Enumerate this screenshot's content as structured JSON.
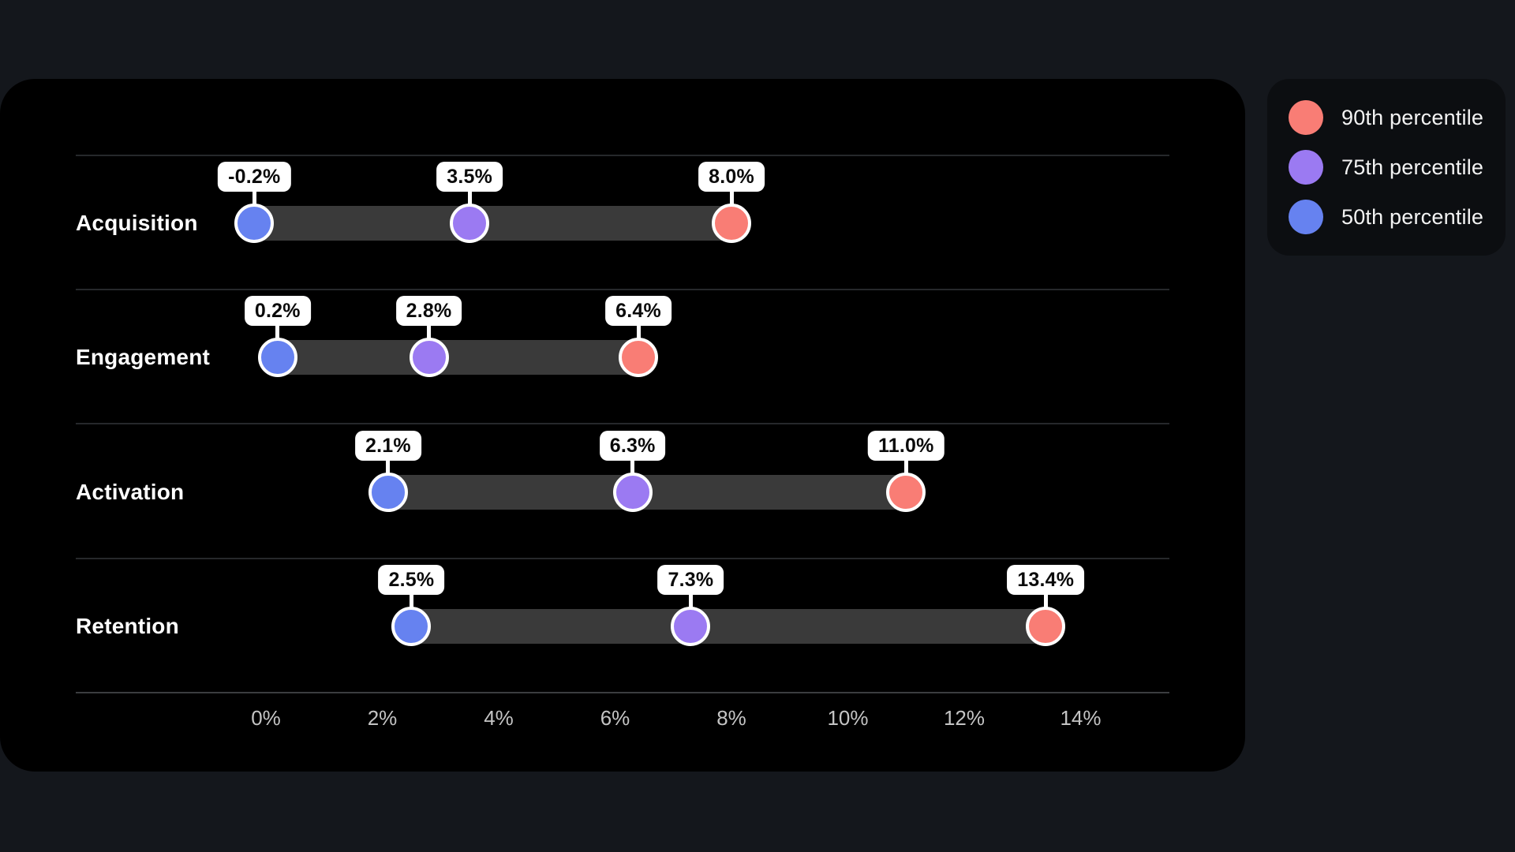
{
  "chart_data": {
    "type": "dumbbell",
    "title": "",
    "xlabel": "",
    "ylabel": "",
    "categories": [
      "Acquisition",
      "Engagement",
      "Activation",
      "Retention"
    ],
    "series": [
      {
        "key": "p50",
        "name": "50th percentile",
        "color": "#6682f0",
        "values": [
          -0.2,
          0.2,
          2.1,
          2.5
        ]
      },
      {
        "key": "p75",
        "name": "75th percentile",
        "color": "#9b7af2",
        "values": [
          3.5,
          2.8,
          6.3,
          7.3
        ]
      },
      {
        "key": "p90",
        "name": "90th percentile",
        "color": "#f97d75",
        "values": [
          8.0,
          6.4,
          11.0,
          13.4
        ]
      }
    ],
    "value_labels": [
      {
        "category": "Acquisition",
        "p50": "-0.2%",
        "p75": "3.5%",
        "p90": "8.0%"
      },
      {
        "category": "Engagement",
        "p50": "0.2%",
        "p75": "2.8%",
        "p90": "6.4%"
      },
      {
        "category": "Activation",
        "p50": "2.1%",
        "p75": "6.3%",
        "p90": "11.0%"
      },
      {
        "category": "Retention",
        "p50": "2.5%",
        "p75": "7.3%",
        "p90": "13.4%"
      }
    ],
    "x_ticks": [
      {
        "value": 0,
        "label": "0%"
      },
      {
        "value": 2,
        "label": "2%"
      },
      {
        "value": 4,
        "label": "4%"
      },
      {
        "value": 6,
        "label": "6%"
      },
      {
        "value": 8,
        "label": "8%"
      },
      {
        "value": 10,
        "label": "10%"
      },
      {
        "value": 12,
        "label": "12%"
      },
      {
        "value": 14,
        "label": "14%"
      }
    ],
    "xlim": [
      -3.3,
      15.5
    ],
    "grid": false,
    "legend_position": "top-right"
  },
  "legend": {
    "items": [
      {
        "key": "p90",
        "label": "90th percentile",
        "color": "#f97d75"
      },
      {
        "key": "p75",
        "label": "75th percentile",
        "color": "#9b7af2"
      },
      {
        "key": "p50",
        "label": "50th percentile",
        "color": "#6682f0"
      }
    ]
  },
  "colors": {
    "page_bg": "#14171c",
    "chart_panel_bg": "#000000",
    "legend_panel_bg": "#0c0e11",
    "track": "#3a3a3a",
    "separator": "#26282b",
    "axis_line": "#3b3d40",
    "axis_label": "#c4c4c4",
    "category_label": "#ffffff",
    "callout_bg": "#ffffff",
    "callout_text": "#0a0a0a",
    "p90": "#f97d75",
    "p75": "#9b7af2",
    "p50": "#6682f0"
  }
}
